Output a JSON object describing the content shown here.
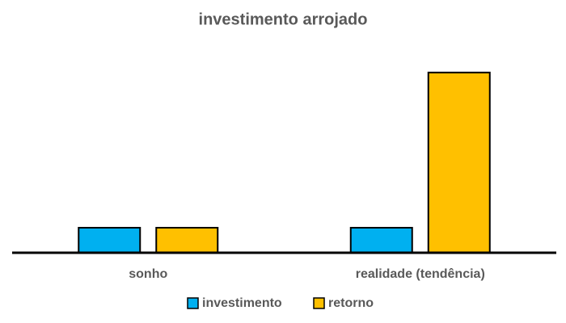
{
  "chart_data": {
    "type": "bar",
    "title": "investimento arrojado",
    "categories": [
      "sonho",
      "realidade (tendência)"
    ],
    "series": [
      {
        "name": "investimento",
        "color": "#00b0f0",
        "values": [
          1,
          1
        ]
      },
      {
        "name": "retorno",
        "color": "#ffc000",
        "values": [
          1,
          7.2
        ]
      }
    ],
    "ylim": [
      0,
      8
    ]
  }
}
